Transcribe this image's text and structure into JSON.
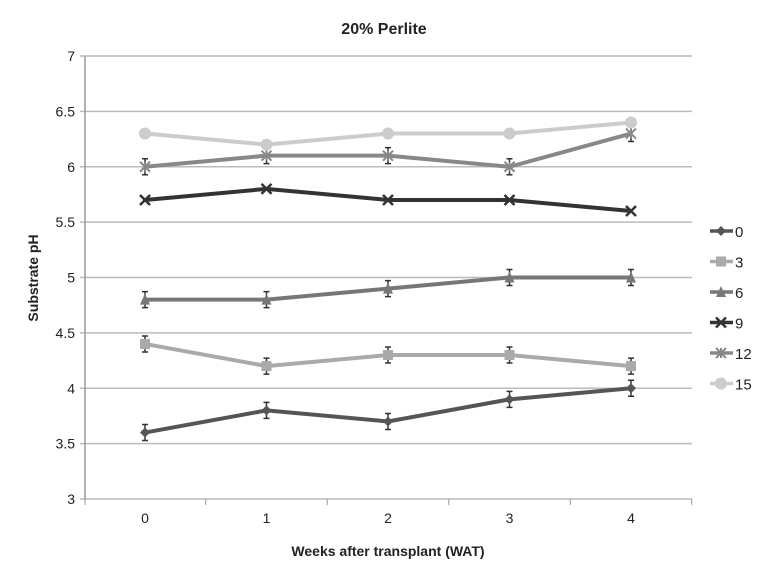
{
  "chart_data": {
    "type": "line",
    "title": "20% Perlite",
    "xlabel": "Weeks after transplant (WAT)",
    "ylabel": "Substrate pH",
    "x": [
      0,
      1,
      2,
      3,
      4
    ],
    "ylim": [
      3,
      7
    ],
    "yticks": [
      "3",
      "3.5",
      "4",
      "4.5",
      "5",
      "5.5",
      "6",
      "6.5",
      "7"
    ],
    "xticks": [
      "0",
      "1",
      "2",
      "3",
      "4"
    ],
    "grid": true,
    "legend_position": "right",
    "error_bars": true,
    "series": [
      {
        "name": "0",
        "values": [
          3.6,
          3.8,
          3.7,
          3.9,
          4.0
        ],
        "marker": "diamond",
        "color": "#555555"
      },
      {
        "name": "3",
        "values": [
          4.4,
          4.2,
          4.3,
          4.3,
          4.2
        ],
        "marker": "square",
        "color": "#aaaaaa"
      },
      {
        "name": "6",
        "values": [
          4.8,
          4.8,
          4.9,
          5.0,
          5.0
        ],
        "marker": "triangle",
        "color": "#777777"
      },
      {
        "name": "9",
        "values": [
          5.7,
          5.8,
          5.7,
          5.7,
          5.6
        ],
        "marker": "x",
        "color": "#333333"
      },
      {
        "name": "12",
        "values": [
          6.0,
          6.1,
          6.1,
          6.0,
          6.3
        ],
        "marker": "star",
        "color": "#888888"
      },
      {
        "name": "15",
        "values": [
          6.3,
          6.2,
          6.3,
          6.3,
          6.4
        ],
        "marker": "circle",
        "color": "#cccccc"
      }
    ]
  }
}
